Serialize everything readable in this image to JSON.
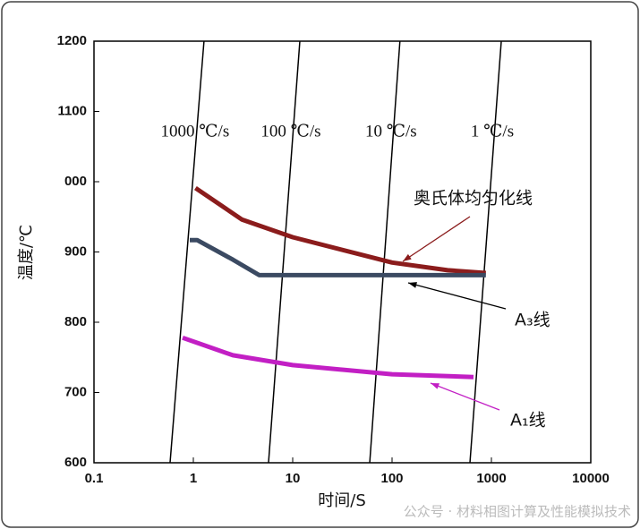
{
  "chart_data": {
    "type": "line",
    "x_label": "时间/S",
    "y_label": "温度/℃",
    "watermark": "公众号 · 材料相图计算及性能模拟技术",
    "xscale": "log",
    "xlim": [
      0.1,
      10000
    ],
    "xticks": [
      0.1,
      1,
      10,
      100,
      1000,
      10000
    ],
    "ylim": [
      600,
      1200
    ],
    "yticks": [
      600,
      700,
      800,
      900,
      {
        "value": 1000,
        "label": "000"
      },
      1100,
      1200
    ],
    "series": [
      {
        "name": "奥氏体均匀化线",
        "color": "#8b1c1c",
        "x": [
          1.05,
          3.1,
          10,
          100,
          363,
          880
        ],
        "values": [
          991,
          946,
          921,
          885,
          874,
          870
        ]
      },
      {
        "name": "A₃线",
        "color": "#3b4a62",
        "x": [
          0.92,
          1.09,
          2.5,
          4.6,
          880
        ],
        "values": [
          917,
          917,
          889,
          867,
          867
        ]
      },
      {
        "name": "A₁线",
        "color": "#c21fc4",
        "x": [
          0.78,
          2.5,
          10,
          100,
          660
        ],
        "values": [
          778,
          753,
          739,
          726,
          722
        ]
      }
    ],
    "rate_lines": [
      {
        "name": "1000 ℃/s",
        "x": [
          0.583,
          1.28
        ],
        "values": [
          600,
          1200
        ]
      },
      {
        "name": "100 ℃/s",
        "x": [
          5.71,
          11.8
        ],
        "values": [
          600,
          1200
        ]
      },
      {
        "name": "10 ℃/s",
        "x": [
          59.6,
          120
        ],
        "values": [
          600,
          1200
        ]
      },
      {
        "name": "1 ℃/s",
        "x": [
          608,
          1257
        ],
        "values": [
          600,
          1200
        ]
      }
    ]
  }
}
